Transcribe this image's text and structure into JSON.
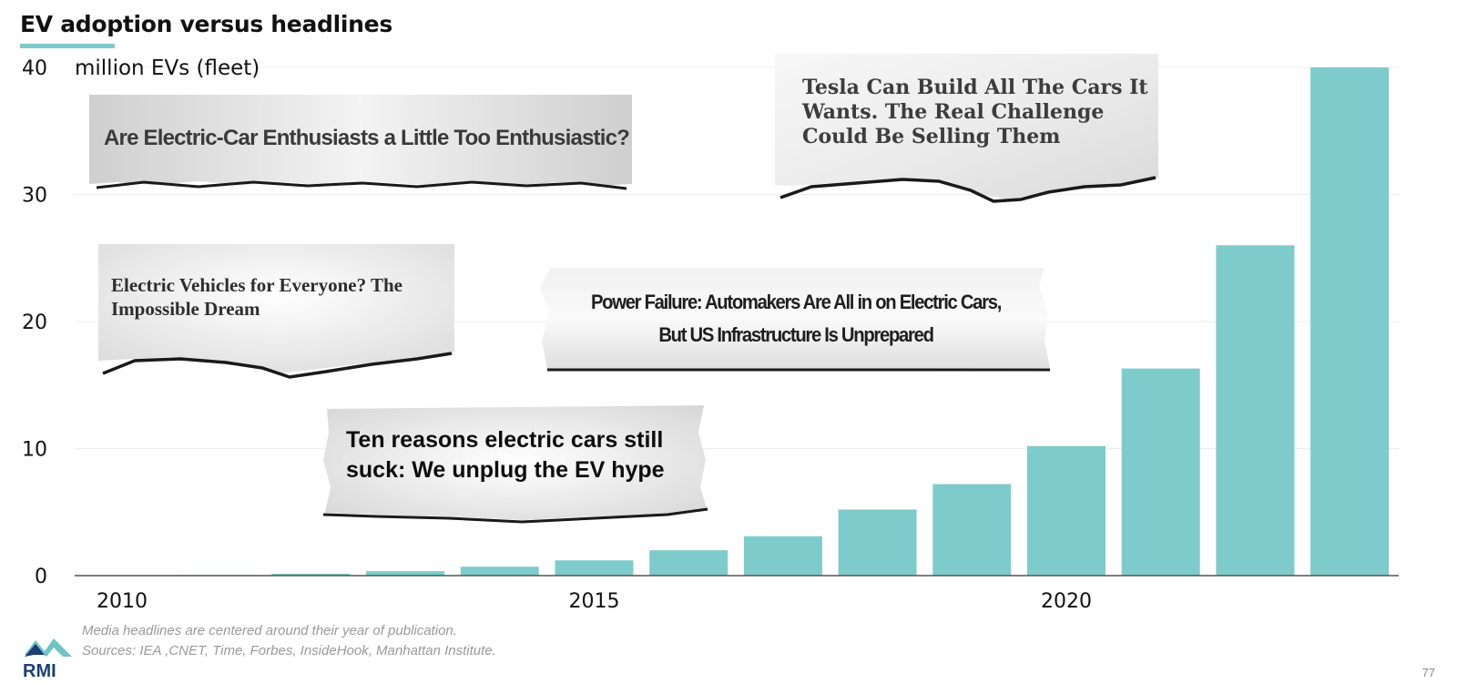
{
  "title": "EV adoption versus headlines",
  "chart_data": {
    "type": "bar",
    "title": "EV adoption versus headlines",
    "ylabel": "million EVs (fleet)",
    "xlabel": "",
    "x": [
      2010,
      2011,
      2012,
      2013,
      2014,
      2015,
      2016,
      2017,
      2018,
      2019,
      2020,
      2021,
      2022,
      2023
    ],
    "values": [
      0.0,
      0.05,
      0.15,
      0.35,
      0.7,
      1.2,
      2.0,
      3.1,
      5.2,
      7.2,
      10.2,
      16.3,
      26.0,
      40.0
    ],
    "ylim": [
      0,
      40
    ],
    "yticks": [
      0,
      10,
      20,
      30,
      40
    ],
    "xticks": [
      2010,
      2015,
      2020
    ],
    "grid": true,
    "bar_color": "#7ecbcb"
  },
  "headlines": [
    {
      "text": "Are Electric-Car Enthusiasts a Little Too Enthusiastic?"
    },
    {
      "text": "Tesla Can Build All The Cars It Wants. The Real Challenge Could Be Selling Them"
    },
    {
      "text": "Electric Vehicles for Everyone? The Impossible Dream"
    },
    {
      "text": "Power Failure: Automakers Are All in on Electric Cars, But US Infrastructure Is Unprepared"
    },
    {
      "text": "Ten reasons electric cars still suck: We unplug the EV hype"
    }
  ],
  "footer": {
    "note": "Media headlines are centered around their year of publication.",
    "sources": "Sources: IEA ,CNET, Time, Forbes, InsideHook, Manhattan Institute."
  },
  "logo_text": "RMI",
  "page_number": "77"
}
